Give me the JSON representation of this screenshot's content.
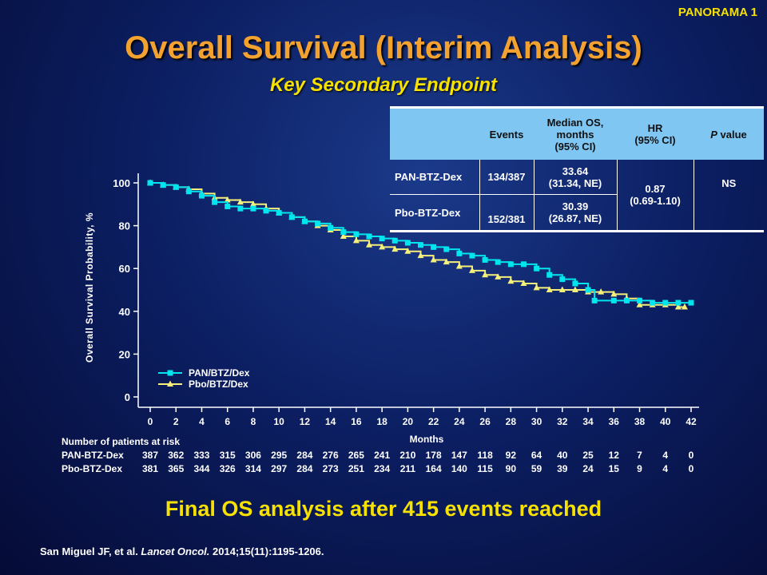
{
  "tag": "PANORAMA 1",
  "title": "Overall Survival (Interim Analysis)",
  "subtitle": "Key Secondary Endpoint",
  "table": {
    "headers": [
      "",
      "Events",
      "Median OS, months (95% CI)",
      "HR (95% CI)",
      "P value"
    ],
    "header_p_italic": "P",
    "header_p_rest": " value",
    "header_median_l1": "Median OS,",
    "header_median_l2": "months",
    "header_median_l3": "(95% CI)",
    "header_hr_l1": "HR",
    "header_hr_l2": "(95% CI)",
    "rows": [
      {
        "arm": "PAN-BTZ-Dex",
        "events": "134/387",
        "median": "33.64",
        "ci": "(31.34, NE)"
      },
      {
        "arm": "Pbo-BTZ-Dex",
        "events": "152/381",
        "median": "30.39",
        "ci": "(26.87, NE)"
      }
    ],
    "hr": "0.87",
    "hr_ci": "(0.69-1.10)",
    "p": "NS"
  },
  "risk": {
    "heading": "Number of patients at risk",
    "rows": [
      {
        "label": "PAN-BTZ-Dex",
        "values": [
          387,
          362,
          333,
          315,
          306,
          295,
          284,
          276,
          265,
          241,
          210,
          178,
          147,
          118,
          92,
          64,
          40,
          25,
          12,
          7,
          4,
          0
        ]
      },
      {
        "label": "Pbo-BTZ-Dex",
        "values": [
          381,
          365,
          344,
          326,
          314,
          297,
          284,
          273,
          251,
          234,
          211,
          164,
          140,
          115,
          90,
          59,
          39,
          24,
          15,
          9,
          4,
          0
        ]
      }
    ]
  },
  "final_text": "Final OS analysis after 415 events reached",
  "citation": {
    "authors": "San Miguel JF, et al. ",
    "journal": "Lancet Oncol.",
    "rest": " 2014;15(11):1195-1206."
  },
  "colors": {
    "pan": "#00e5ee",
    "pbo": "#f5f07a",
    "title": "#f3a230",
    "accent": "#f6e100"
  },
  "chart_data": {
    "type": "line",
    "xlabel": "Months",
    "ylabel": "Overall Survival Probability, %",
    "xlim": [
      0,
      42
    ],
    "ylim": [
      0,
      100
    ],
    "xticks": [
      0,
      2,
      4,
      6,
      8,
      10,
      12,
      14,
      16,
      18,
      20,
      22,
      24,
      26,
      28,
      30,
      32,
      34,
      36,
      38,
      40,
      42
    ],
    "yticks": [
      0,
      20,
      40,
      60,
      80,
      100
    ],
    "legend_position": "bottom-left",
    "series": [
      {
        "name": "PAN/BTZ/Dex",
        "marker": "square",
        "points": [
          [
            0,
            100
          ],
          [
            1,
            99
          ],
          [
            2,
            98
          ],
          [
            3,
            96
          ],
          [
            4,
            94
          ],
          [
            5,
            91
          ],
          [
            6,
            89
          ],
          [
            7,
            88
          ],
          [
            8,
            88
          ],
          [
            9,
            87
          ],
          [
            10,
            86
          ],
          [
            11,
            84
          ],
          [
            12,
            82
          ],
          [
            13,
            81
          ],
          [
            14,
            79
          ],
          [
            15,
            77
          ],
          [
            16,
            76
          ],
          [
            17,
            75
          ],
          [
            18,
            74
          ],
          [
            19,
            73
          ],
          [
            20,
            72
          ],
          [
            21,
            71
          ],
          [
            22,
            70
          ],
          [
            23,
            69
          ],
          [
            24,
            67
          ],
          [
            25,
            66
          ],
          [
            26,
            64
          ],
          [
            27,
            63
          ],
          [
            28,
            62
          ],
          [
            29,
            62
          ],
          [
            30,
            60
          ],
          [
            31,
            57
          ],
          [
            32,
            55
          ],
          [
            33,
            53
          ],
          [
            34,
            50
          ],
          [
            34.5,
            45
          ],
          [
            36,
            45
          ],
          [
            37,
            45
          ],
          [
            38,
            45
          ],
          [
            39,
            44
          ],
          [
            40,
            44
          ],
          [
            41,
            44
          ],
          [
            42,
            44
          ]
        ]
      },
      {
        "name": "Pbo/BTZ/Dex",
        "marker": "triangle",
        "points": [
          [
            0,
            100
          ],
          [
            1,
            99
          ],
          [
            2,
            98
          ],
          [
            3,
            97
          ],
          [
            4,
            95
          ],
          [
            5,
            93
          ],
          [
            6,
            92
          ],
          [
            7,
            91
          ],
          [
            8,
            90
          ],
          [
            9,
            88
          ],
          [
            10,
            86
          ],
          [
            11,
            84
          ],
          [
            12,
            82
          ],
          [
            13,
            80
          ],
          [
            14,
            78
          ],
          [
            15,
            75
          ],
          [
            16,
            73
          ],
          [
            17,
            71
          ],
          [
            18,
            70
          ],
          [
            19,
            69
          ],
          [
            20,
            68
          ],
          [
            21,
            66
          ],
          [
            22,
            64
          ],
          [
            23,
            63
          ],
          [
            24,
            61
          ],
          [
            25,
            59
          ],
          [
            26,
            57
          ],
          [
            27,
            56
          ],
          [
            28,
            54
          ],
          [
            29,
            53
          ],
          [
            30,
            51
          ],
          [
            31,
            50
          ],
          [
            32,
            50
          ],
          [
            33,
            50
          ],
          [
            34,
            49
          ],
          [
            35,
            49
          ],
          [
            36,
            48
          ],
          [
            37,
            46
          ],
          [
            38,
            43
          ],
          [
            39,
            43
          ],
          [
            40,
            43
          ],
          [
            41,
            42
          ],
          [
            41.5,
            42
          ]
        ]
      }
    ]
  }
}
